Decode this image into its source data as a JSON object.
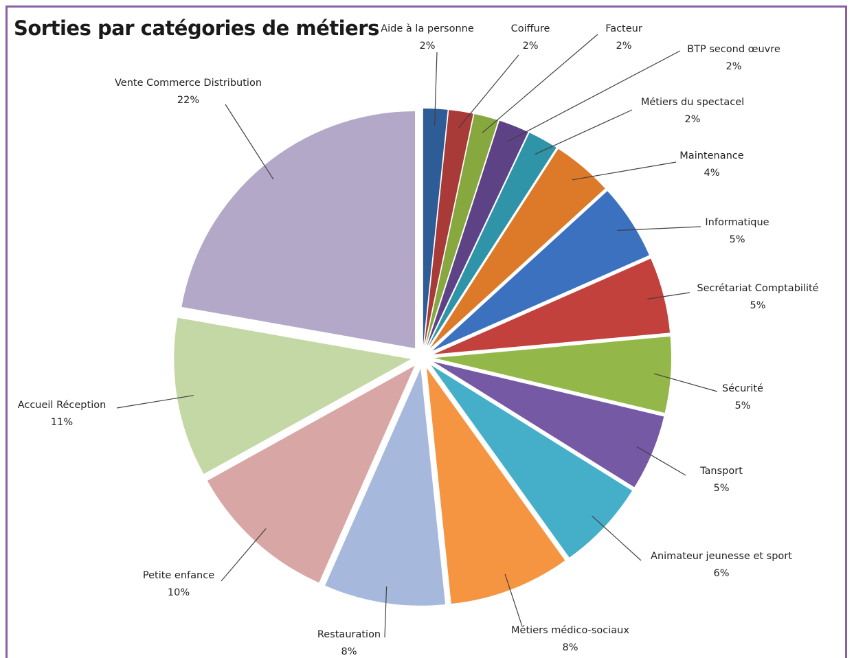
{
  "chart_data": {
    "type": "pie",
    "title": "Sorties par catégories de métiers",
    "exploded": true,
    "slices": [
      {
        "label": "Aide à la personne",
        "value": 1.6,
        "percent_label": "2%",
        "color": "#2e5c96"
      },
      {
        "label": "Coiffure",
        "value": 1.6,
        "percent_label": "2%",
        "color": "#a83a38"
      },
      {
        "label": "Facteur",
        "value": 1.6,
        "percent_label": "2%",
        "color": "#86a83e"
      },
      {
        "label": "BTP second œuvre",
        "value": 2.0,
        "percent_label": "2%",
        "color": "#5e4286"
      },
      {
        "label": "Métiers du spectacel",
        "value": 2.0,
        "percent_label": "2%",
        "color": "#2f94a8"
      },
      {
        "label": "Maintenance",
        "value": 4.0,
        "percent_label": "4%",
        "color": "#dd7a2a"
      },
      {
        "label": "Informatique",
        "value": 5.0,
        "percent_label": "5%",
        "color": "#3b71be"
      },
      {
        "label": "Secrétariat Comptabilité",
        "value": 5.0,
        "percent_label": "5%",
        "color": "#c2413c"
      },
      {
        "label": "Sécurité",
        "value": 5.0,
        "percent_label": "5%",
        "color": "#93b849"
      },
      {
        "label": "Tansport",
        "value": 5.0,
        "percent_label": "5%",
        "color": "#7659a4"
      },
      {
        "label": "Animateur jeunesse et sport",
        "value": 6.0,
        "percent_label": "6%",
        "color": "#45afc9"
      },
      {
        "label": "Métiers médico-sociaux",
        "value": 8.0,
        "percent_label": "8%",
        "color": "#f59541"
      },
      {
        "label": "Restauration",
        "value": 8.0,
        "percent_label": "8%",
        "color": "#a6b9dc"
      },
      {
        "label": "Petite enfance",
        "value": 10.0,
        "percent_label": "10%",
        "color": "#d8a7a5"
      },
      {
        "label": "Accueil Réception",
        "value": 10.5,
        "percent_label": "11%",
        "color": "#c4d8a5"
      },
      {
        "label": "Vente Commerce Distribution",
        "value": 21.5,
        "percent_label": "22%",
        "color": "#b4a8c8"
      }
    ]
  }
}
